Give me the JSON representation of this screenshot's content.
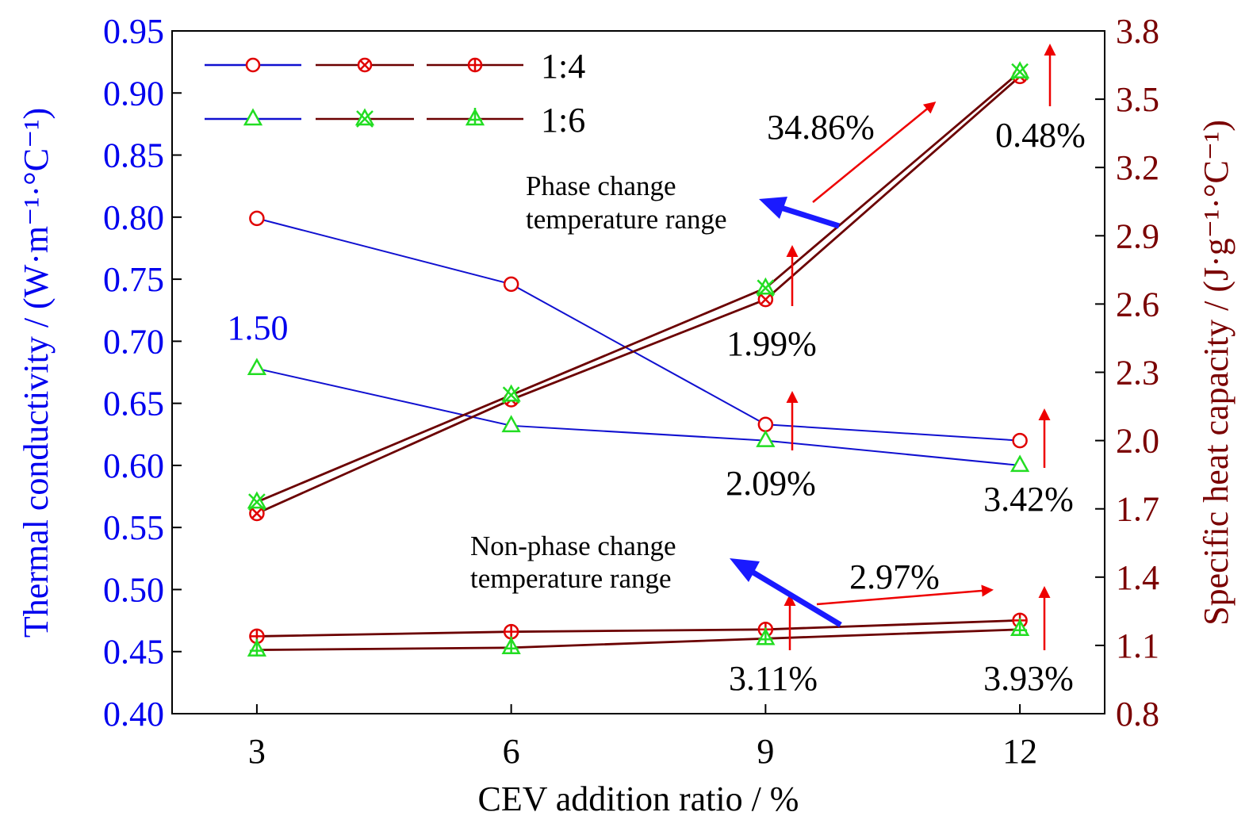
{
  "colors": {
    "left_axis": "#0000ee",
    "right_axis": "#7a0000",
    "thermal_line": "#1010d0",
    "heat_line": "#6b0000",
    "marker_1_4": "#e00000",
    "marker_1_6": "#22dd22",
    "arrow_red": "#ee0000",
    "arrow_blue": "#1a1aff",
    "text": "#000000"
  },
  "legend": {
    "series_1_4": "1:4",
    "series_1_6": "1:6"
  },
  "chart_data": {
    "type": "line",
    "x": [
      3,
      6,
      9,
      12
    ],
    "xlabel": "CEV addition ratio / %",
    "ylabel_left": "Thermal conductivity / (W·m⁻¹·°C⁻¹)",
    "ylabel_right": "Specific heat capacity / (J·g⁻¹·°C⁻¹)",
    "x_ticks": [
      "3",
      "6",
      "9",
      "12"
    ],
    "xlim": [
      2,
      13
    ],
    "ylim_left": [
      0.4,
      0.95
    ],
    "ylim_right": [
      0.8,
      3.8
    ],
    "y_ticks_left": [
      "0.40",
      "0.45",
      "0.50",
      "0.55",
      "0.60",
      "0.65",
      "0.70",
      "0.75",
      "0.80",
      "0.85",
      "0.90",
      "0.95"
    ],
    "y_ticks_right": [
      "0.8",
      "1.1",
      "1.4",
      "1.7",
      "2.0",
      "2.3",
      "2.6",
      "2.9",
      "3.2",
      "3.5",
      "3.8"
    ],
    "series": [
      {
        "name": "1:4",
        "axis": "left",
        "kind": "thermal",
        "marker": "circle",
        "values": [
          0.799,
          0.746,
          0.633,
          0.62
        ]
      },
      {
        "name": "1:6",
        "axis": "left",
        "kind": "thermal",
        "marker": "triangle",
        "values": [
          0.678,
          0.632,
          0.62,
          0.6
        ]
      },
      {
        "name": "1:4",
        "axis": "right",
        "kind": "heat_phase",
        "marker": "circle-x",
        "values": [
          1.68,
          2.18,
          2.62,
          3.6
        ]
      },
      {
        "name": "1:6",
        "axis": "right",
        "kind": "heat_phase",
        "marker": "x-triangle",
        "values": [
          1.73,
          2.2,
          2.67,
          3.62
        ]
      },
      {
        "name": "1:4",
        "axis": "right",
        "kind": "heat_nonphase",
        "marker": "circle-plus",
        "values": [
          1.14,
          1.16,
          1.17,
          1.21
        ]
      },
      {
        "name": "1:6",
        "axis": "right",
        "kind": "heat_nonphase",
        "marker": "triangle-plus",
        "values": [
          1.08,
          1.09,
          1.13,
          1.17
        ]
      }
    ],
    "annotations": {
      "value_1_50": "1.50",
      "pct_34_86": "34.86%",
      "pct_0_48": "0.48%",
      "pct_1_99": "1.99%",
      "pct_2_09": "2.09%",
      "pct_3_42": "3.42%",
      "pct_2_97": "2.97%",
      "pct_3_11": "3.11%",
      "pct_3_93": "3.93%",
      "phase_line1": "Phase change",
      "phase_line2": "temperature range",
      "nonphase_line1": "Non-phase change",
      "nonphase_line2": "temperature range"
    }
  }
}
